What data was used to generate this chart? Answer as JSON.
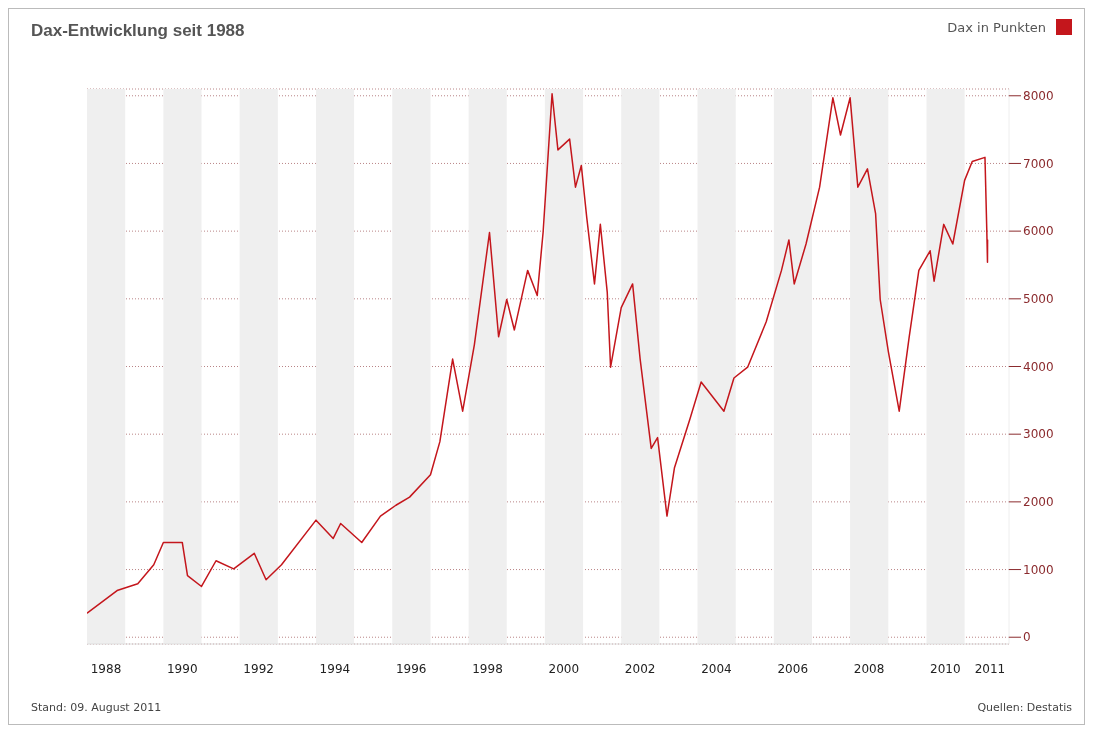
{
  "chart_data": {
    "type": "line",
    "title": "Dax-Entwicklung seit 1988",
    "x": [
      "1988-01-05",
      "1988-10-15",
      "1989-05-01",
      "1989-10-01",
      "1990-01-01",
      "1990-07-01",
      "1990-08-20",
      "1991-01-01",
      "1991-05-20",
      "1991-11-05",
      "1992-05-20",
      "1992-09-10",
      "1993-02-05",
      "1994-01-01",
      "1994-06-15",
      "1994-08-25",
      "1995-03-15",
      "1995-09-10",
      "1996-02-05",
      "1996-06-15",
      "1997-01-01",
      "1997-04-01",
      "1997-08-01",
      "1997-11-05",
      "1998-02-25",
      "1998-07-20",
      "1998-10-15",
      "1999-01-01",
      "1999-03-15",
      "1999-07-20",
      "1999-10-20",
      "1999-12-15",
      "2000-03-10",
      "2000-05-05",
      "2000-08-25",
      "2000-10-20",
      "2000-12-15",
      "2001-02-05",
      "2001-04-20",
      "2001-06-15",
      "2001-08-20",
      "2001-09-21",
      "2002-01-01",
      "2002-04-20",
      "2002-07-01",
      "2002-10-15",
      "2002-12-15",
      "2003-03-15",
      "2003-05-25",
      "2003-10-20",
      "2004-02-05",
      "2004-09-10",
      "2004-12-15",
      "2005-04-25",
      "2005-10-20",
      "2006-03-15",
      "2006-05-25",
      "2006-07-15",
      "2006-11-05",
      "2007-03-15",
      "2007-07-20",
      "2007-10-01",
      "2008-01-01",
      "2008-03-15",
      "2008-06-15",
      "2008-09-01",
      "2008-10-15",
      "2009-01-01",
      "2009-04-15",
      "2009-07-20",
      "2009-10-20",
      "2010-02-05",
      "2010-03-15",
      "2010-06-15",
      "2010-09-10",
      "2011-01-01",
      "2011-03-15",
      "2011-07-15",
      "2011-08-01",
      "2011-08-08",
      "2011-08-09"
    ],
    "series": [
      {
        "name": "Dax in Punkten",
        "color": "#c4161c",
        "values": [
          360,
          690,
          790,
          1070,
          1400,
          1400,
          910,
          750,
          1130,
          1010,
          1240,
          850,
          1070,
          1730,
          1460,
          1680,
          1400,
          1790,
          1950,
          2070,
          2400,
          2890,
          4110,
          3340,
          4320,
          5980,
          4440,
          4990,
          4540,
          5420,
          5050,
          5980,
          8030,
          7200,
          7360,
          6650,
          6970,
          6200,
          5220,
          6100,
          5100,
          3990,
          4870,
          5220,
          4110,
          2790,
          2950,
          1790,
          2500,
          3220,
          3770,
          3340,
          3830,
          3990,
          4660,
          5420,
          5870,
          5220,
          5810,
          6650,
          7970,
          7420,
          7970,
          6650,
          6920,
          6260,
          4990,
          4220,
          3340,
          4440,
          5420,
          5710,
          5260,
          6100,
          5810,
          6750,
          7030,
          7090,
          6040,
          5540,
          5870
        ]
      }
    ],
    "xlim": [
      "1988-01-01",
      "2012-03-01"
    ],
    "xticks": [
      {
        "value": "1988-07-01",
        "label": "1988"
      },
      {
        "value": "1990-07-01",
        "label": "1990"
      },
      {
        "value": "1992-07-01",
        "label": "1992"
      },
      {
        "value": "1994-07-01",
        "label": "1994"
      },
      {
        "value": "1996-07-01",
        "label": "1996"
      },
      {
        "value": "1998-07-01",
        "label": "1998"
      },
      {
        "value": "2000-07-01",
        "label": "2000"
      },
      {
        "value": "2002-07-01",
        "label": "2002"
      },
      {
        "value": "2004-07-01",
        "label": "2004"
      },
      {
        "value": "2006-07-01",
        "label": "2006"
      },
      {
        "value": "2008-07-01",
        "label": "2008"
      },
      {
        "value": "2010-07-01",
        "label": "2010"
      },
      {
        "value": "2011-09-01",
        "label": "2011"
      }
    ],
    "ylim": [
      -100,
      8100
    ],
    "yticks": [
      0,
      1000,
      2000,
      3000,
      4000,
      5000,
      6000,
      7000,
      8000
    ],
    "bands": [
      {
        "axis": "x",
        "from": "1988-01-01",
        "to": "1989-01-01",
        "color": "#efefef"
      },
      {
        "axis": "x",
        "from": "1990-01-01",
        "to": "1991-01-01",
        "color": "#efefef"
      },
      {
        "axis": "x",
        "from": "1992-01-01",
        "to": "1993-01-01",
        "color": "#efefef"
      },
      {
        "axis": "x",
        "from": "1994-01-01",
        "to": "1995-01-01",
        "color": "#efefef"
      },
      {
        "axis": "x",
        "from": "1996-01-01",
        "to": "1997-01-01",
        "color": "#efefef"
      },
      {
        "axis": "x",
        "from": "1998-01-01",
        "to": "1999-01-01",
        "color": "#efefef"
      },
      {
        "axis": "x",
        "from": "2000-01-01",
        "to": "2001-01-01",
        "color": "#efefef"
      },
      {
        "axis": "x",
        "from": "2002-01-01",
        "to": "2003-01-01",
        "color": "#efefef"
      },
      {
        "axis": "x",
        "from": "2004-01-01",
        "to": "2005-01-01",
        "color": "#efefef"
      },
      {
        "axis": "x",
        "from": "2006-01-01",
        "to": "2007-01-01",
        "color": "#efefef"
      },
      {
        "axis": "x",
        "from": "2008-01-01",
        "to": "2009-01-01",
        "color": "#efefef"
      },
      {
        "axis": "x",
        "from": "2010-01-01",
        "to": "2011-01-01",
        "color": "#efefef"
      }
    ],
    "grid": "y",
    "legend": "top right",
    "marker": "none",
    "line_style": "solid",
    "annotations": [
      "Stand: 09. August 2011",
      "Quellen: Destatis"
    ]
  }
}
